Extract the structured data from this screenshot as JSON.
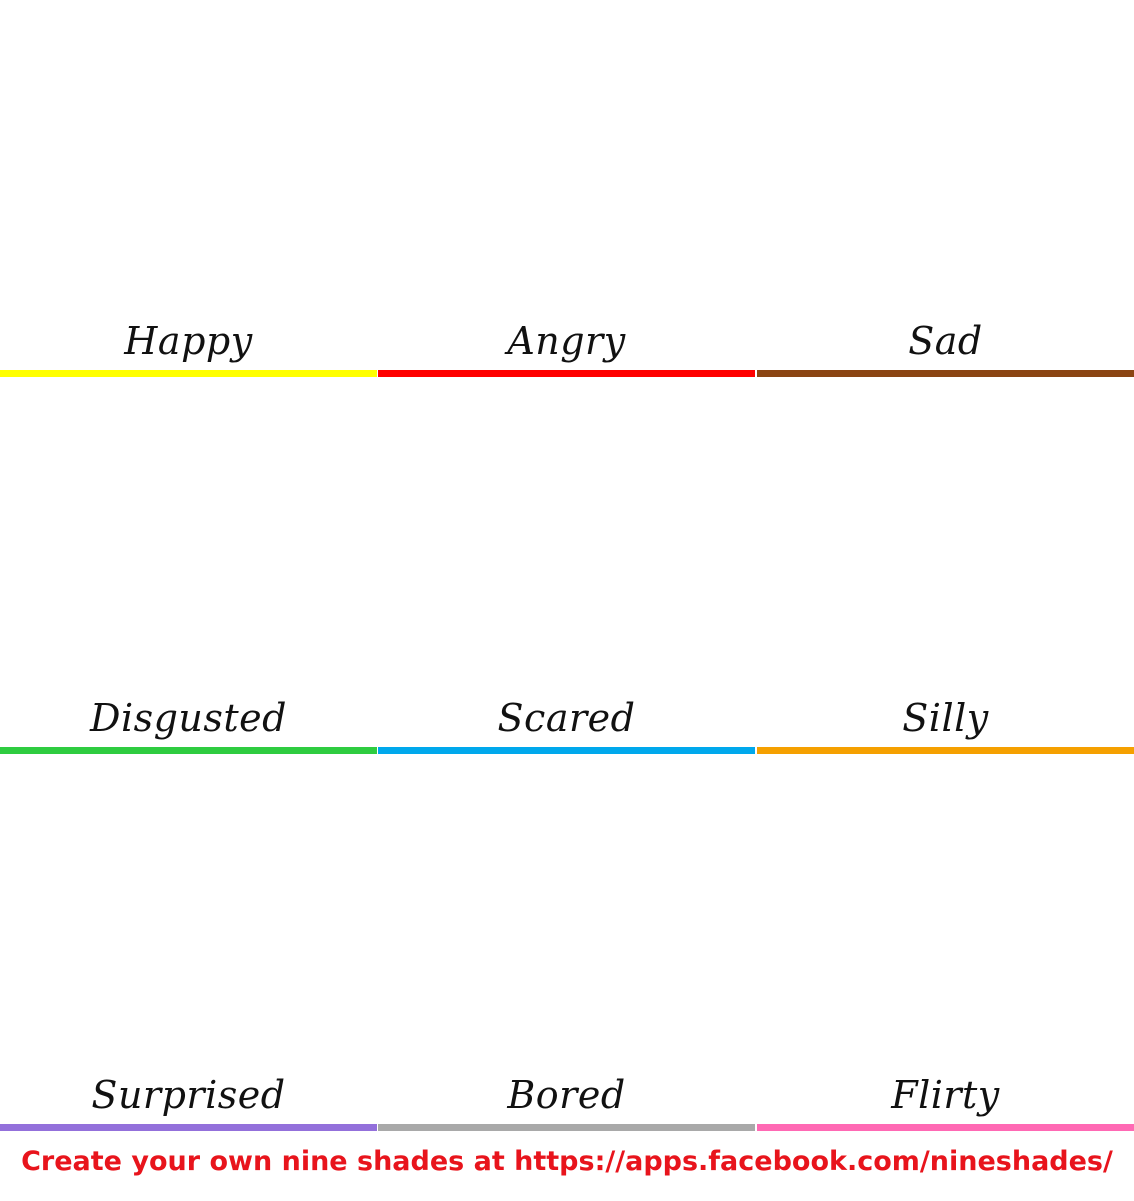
{
  "cells": [
    {
      "label": "Happy",
      "color": "#ffff00"
    },
    {
      "label": "Angry",
      "color": "#ff0000"
    },
    {
      "label": "Sad",
      "color": "#8b4513"
    },
    {
      "label": "Disgusted",
      "color": "#2ecc40"
    },
    {
      "label": "Scared",
      "color": "#00a8ec"
    },
    {
      "label": "Silly",
      "color": "#f5a000"
    },
    {
      "label": "Surprised",
      "color": "#9370db"
    },
    {
      "label": "Bored",
      "color": "#a9a9a9"
    },
    {
      "label": "Flirty",
      "color": "#ff69b4"
    }
  ],
  "footer": {
    "text": "Create your own nine shades at https://apps.facebook.com/nineshades/"
  }
}
